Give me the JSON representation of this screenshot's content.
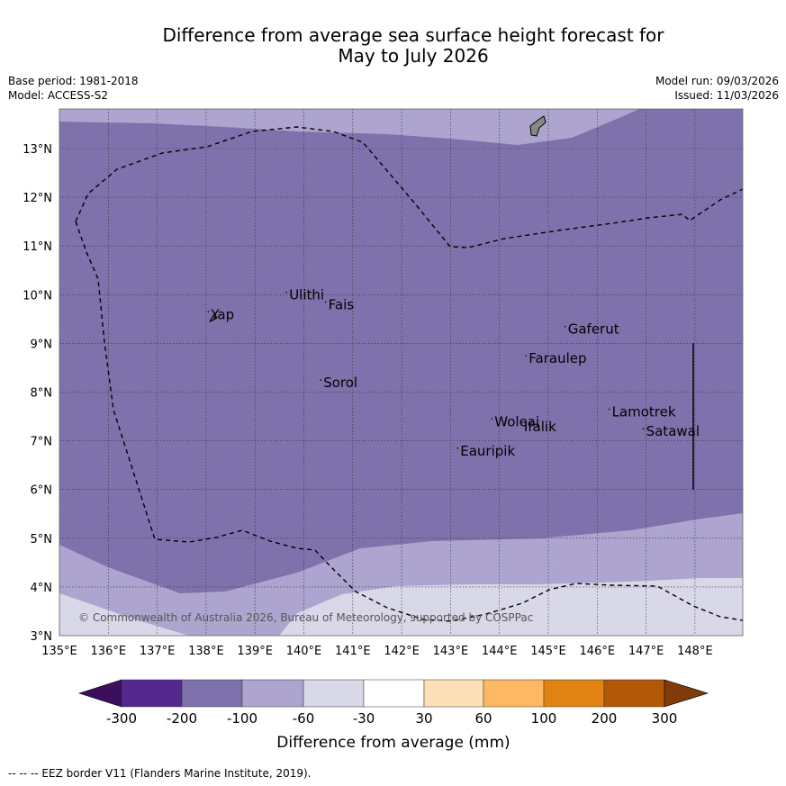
{
  "title": {
    "line1": "Difference from average sea surface height forecast for",
    "line2": "May to July 2026"
  },
  "meta": {
    "base_period": "Base period: 1981-2018",
    "model": "Model: ACCESS-S2",
    "model_run": "Model run: 09/03/2026",
    "issued": "Issued: 11/03/2026"
  },
  "map": {
    "lon_range": [
      135,
      149
    ],
    "lat_range": [
      3,
      13.8
    ],
    "x_ticks": [
      "135°E",
      "136°E",
      "137°E",
      "138°E",
      "139°E",
      "140°E",
      "141°E",
      "142°E",
      "143°E",
      "144°E",
      "145°E",
      "146°E",
      "147°E",
      "148°E"
    ],
    "y_ticks": [
      "3°N",
      "4°N",
      "5°N",
      "6°N",
      "7°N",
      "8°N",
      "9°N",
      "10°N",
      "11°N",
      "12°N",
      "13°N"
    ],
    "places": [
      {
        "name": "Yap",
        "lon": 138.1,
        "lat": 9.5
      },
      {
        "name": "Ulithi",
        "lon": 139.7,
        "lat": 9.9
      },
      {
        "name": "Fais",
        "lon": 140.5,
        "lat": 9.7
      },
      {
        "name": "Sorol",
        "lon": 140.4,
        "lat": 8.1
      },
      {
        "name": "Gaferut",
        "lon": 145.4,
        "lat": 9.2
      },
      {
        "name": "Faraulep",
        "lon": 144.6,
        "lat": 8.6
      },
      {
        "name": "Woleai",
        "lon": 143.9,
        "lat": 7.3
      },
      {
        "name": "Ifalik",
        "lon": 144.5,
        "lat": 7.2
      },
      {
        "name": "Lamotrek",
        "lon": 146.3,
        "lat": 7.5
      },
      {
        "name": "Satawal",
        "lon": 147.0,
        "lat": 7.1
      },
      {
        "name": "Eauripik",
        "lon": 143.2,
        "lat": 6.7
      }
    ],
    "copyright": "© Commonwealth of Australia 2026, Bureau of Meteorology, supported by COSPPac",
    "fill_colors": {
      "c_200_100": "#7f72ac",
      "c_100_60": "#ada5cf",
      "c_60_30": "#d8d8e8",
      "land": "#888888"
    }
  },
  "colorbar": {
    "colors": [
      "#3b0f5e",
      "#54278f",
      "#7f72ac",
      "#ada5cf",
      "#d8d8e8",
      "#ffffff",
      "#fee0b6",
      "#fdb863",
      "#e08214",
      "#b35806",
      "#7f3b08"
    ],
    "labels": [
      "-300",
      "-200",
      "-100",
      "-60",
      "-30",
      "30",
      "60",
      "100",
      "200",
      "300"
    ],
    "title": "Difference from average (mm)"
  },
  "footer": "--  --  -- EEZ border V11 (Flanders Marine Institute, 2019)."
}
